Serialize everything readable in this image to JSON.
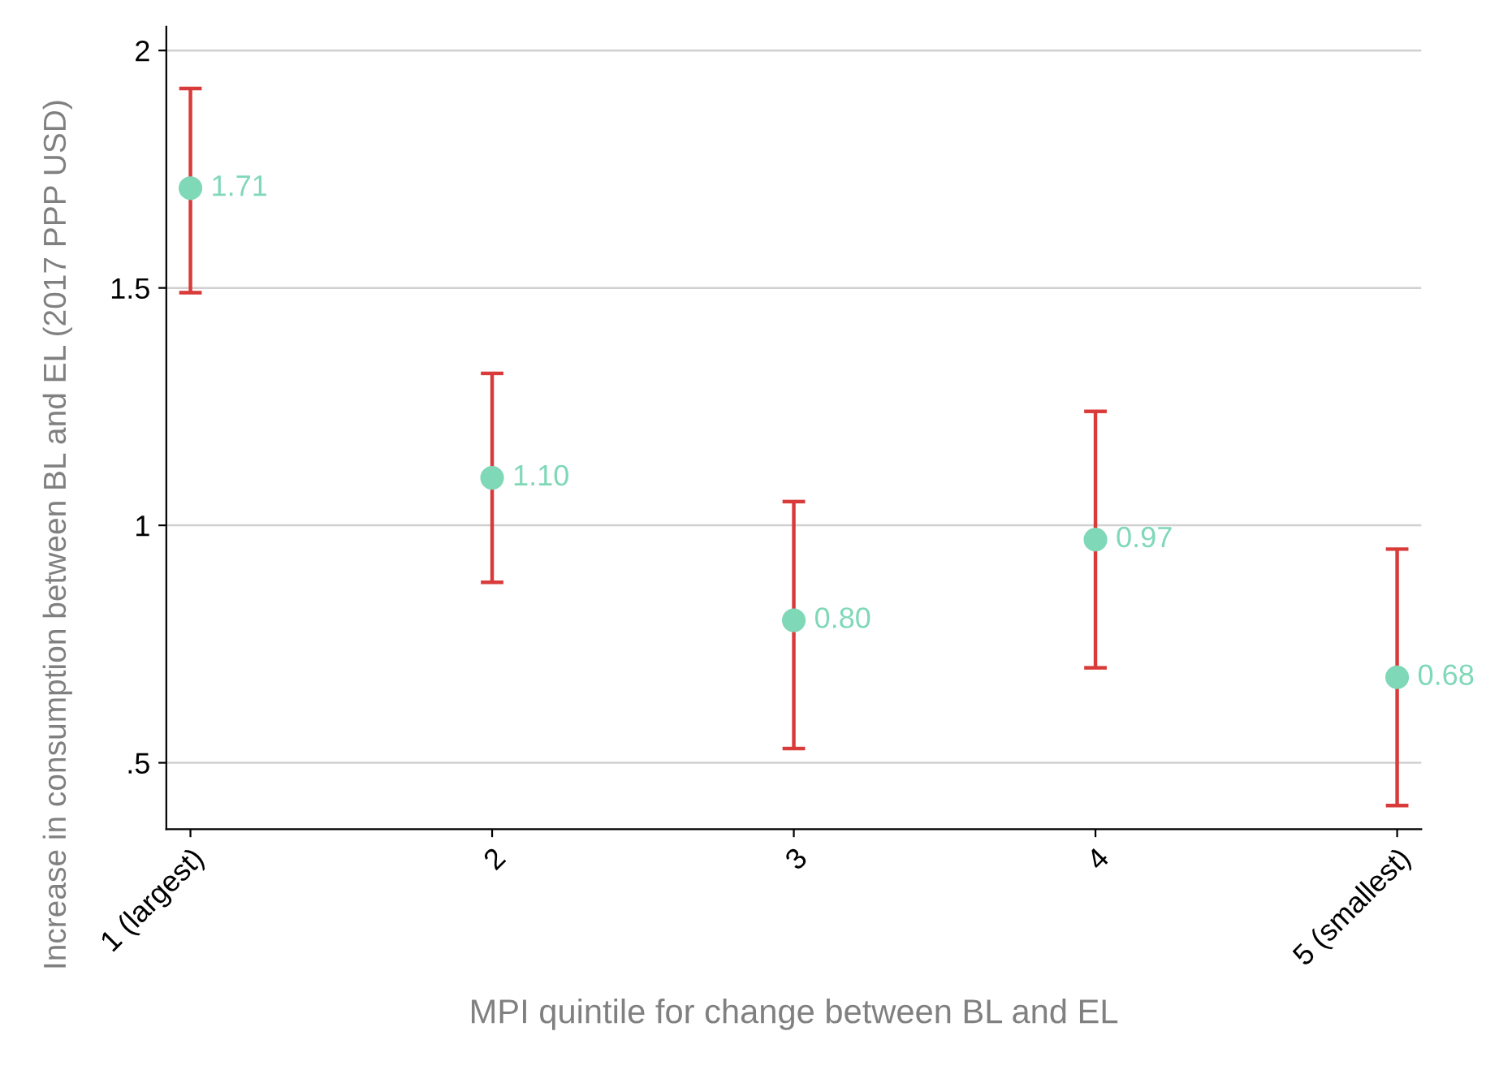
{
  "chart_data": {
    "type": "scatter",
    "xlabel": "MPI quintile for change between BL and EL",
    "ylabel": "Increase in consumption between BL and EL (2017 PPP USD)",
    "categories": [
      "1 (largest)",
      "2",
      "3",
      "4",
      "5 (smallest)"
    ],
    "series": [
      {
        "color": "#7fd8b8",
        "values": [
          1.71,
          1.1,
          0.8,
          0.97,
          0.68
        ],
        "errors": [
          [
            1.49,
            1.92
          ],
          [
            0.88,
            1.32
          ],
          [
            0.53,
            1.05
          ],
          [
            0.7,
            1.24
          ],
          [
            0.41,
            0.95
          ]
        ],
        "value_labels": [
          "1.71",
          "1.10",
          "0.80",
          "0.97",
          "0.68"
        ]
      }
    ],
    "ylim": [
      0.36,
      2.05
    ],
    "yticks": [
      {
        "value": 0.5,
        "label": ".5"
      },
      1,
      1.5,
      2
    ],
    "grid": "y",
    "marker": "circle",
    "legend": false
  }
}
